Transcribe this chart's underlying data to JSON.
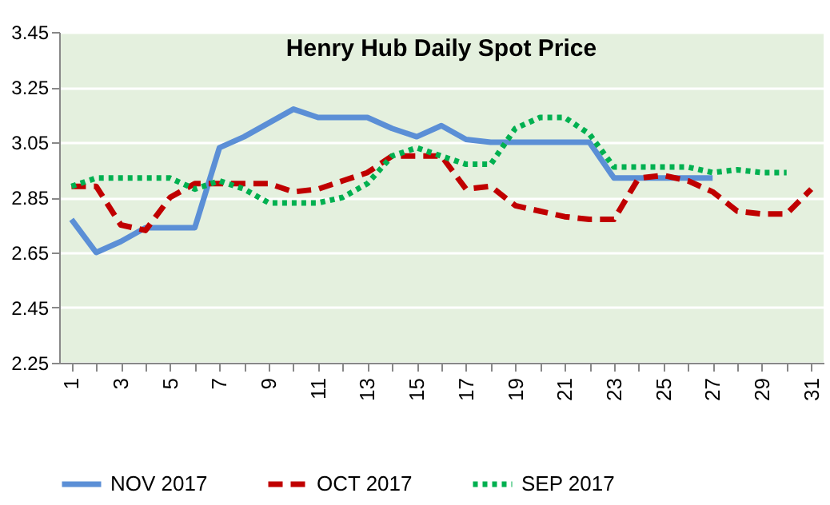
{
  "chart_data": {
    "type": "line",
    "title": "Henry Hub Daily Spot Price",
    "categories": [
      "1",
      null,
      "3",
      null,
      "5",
      null,
      "7",
      null,
      "9",
      null,
      "11",
      null,
      "13",
      null,
      "15",
      null,
      "17",
      null,
      "19",
      null,
      "21",
      null,
      "23",
      null,
      "25",
      null,
      "27",
      null,
      "29",
      null,
      "31"
    ],
    "series": [
      {
        "name": "NOV 2017",
        "color": "#5b8fd6",
        "line_style": "solid",
        "values": [
          2.77,
          2.65,
          2.69,
          2.74,
          2.74,
          2.74,
          3.03,
          3.07,
          3.12,
          3.17,
          3.14,
          3.14,
          3.14,
          3.1,
          3.07,
          3.11,
          3.06,
          3.05,
          3.05,
          3.05,
          3.05,
          3.05,
          2.92,
          2.92,
          2.92,
          2.92,
          2.92,
          null,
          null,
          null,
          null
        ]
      },
      {
        "name": "OCT 2017",
        "color": "#c00000",
        "line_style": "dashed",
        "values": [
          2.89,
          2.89,
          2.75,
          2.73,
          2.85,
          2.9,
          2.9,
          2.9,
          2.9,
          2.87,
          2.88,
          2.91,
          2.94,
          3.0,
          3.0,
          3.0,
          2.88,
          2.89,
          2.82,
          2.8,
          2.78,
          2.77,
          2.77,
          2.92,
          2.93,
          2.91,
          2.87,
          2.8,
          2.79,
          2.79,
          2.88
        ]
      },
      {
        "name": "SEP 2017",
        "color": "#00b050",
        "line_style": "dotted",
        "values": [
          2.89,
          2.92,
          2.92,
          2.92,
          2.92,
          2.88,
          2.91,
          2.88,
          2.83,
          2.83,
          2.83,
          2.85,
          2.9,
          3.0,
          3.03,
          3.0,
          2.97,
          2.97,
          3.1,
          3.14,
          3.14,
          3.08,
          2.96,
          2.96,
          2.96,
          2.96,
          2.94,
          2.95,
          2.94,
          2.94,
          null
        ]
      }
    ],
    "ylim": [
      2.25,
      3.45
    ],
    "yticks": [
      2.25,
      2.45,
      2.65,
      2.85,
      3.05,
      3.25,
      3.45
    ],
    "grid": "y",
    "legend": "bottom",
    "marker": "none"
  }
}
